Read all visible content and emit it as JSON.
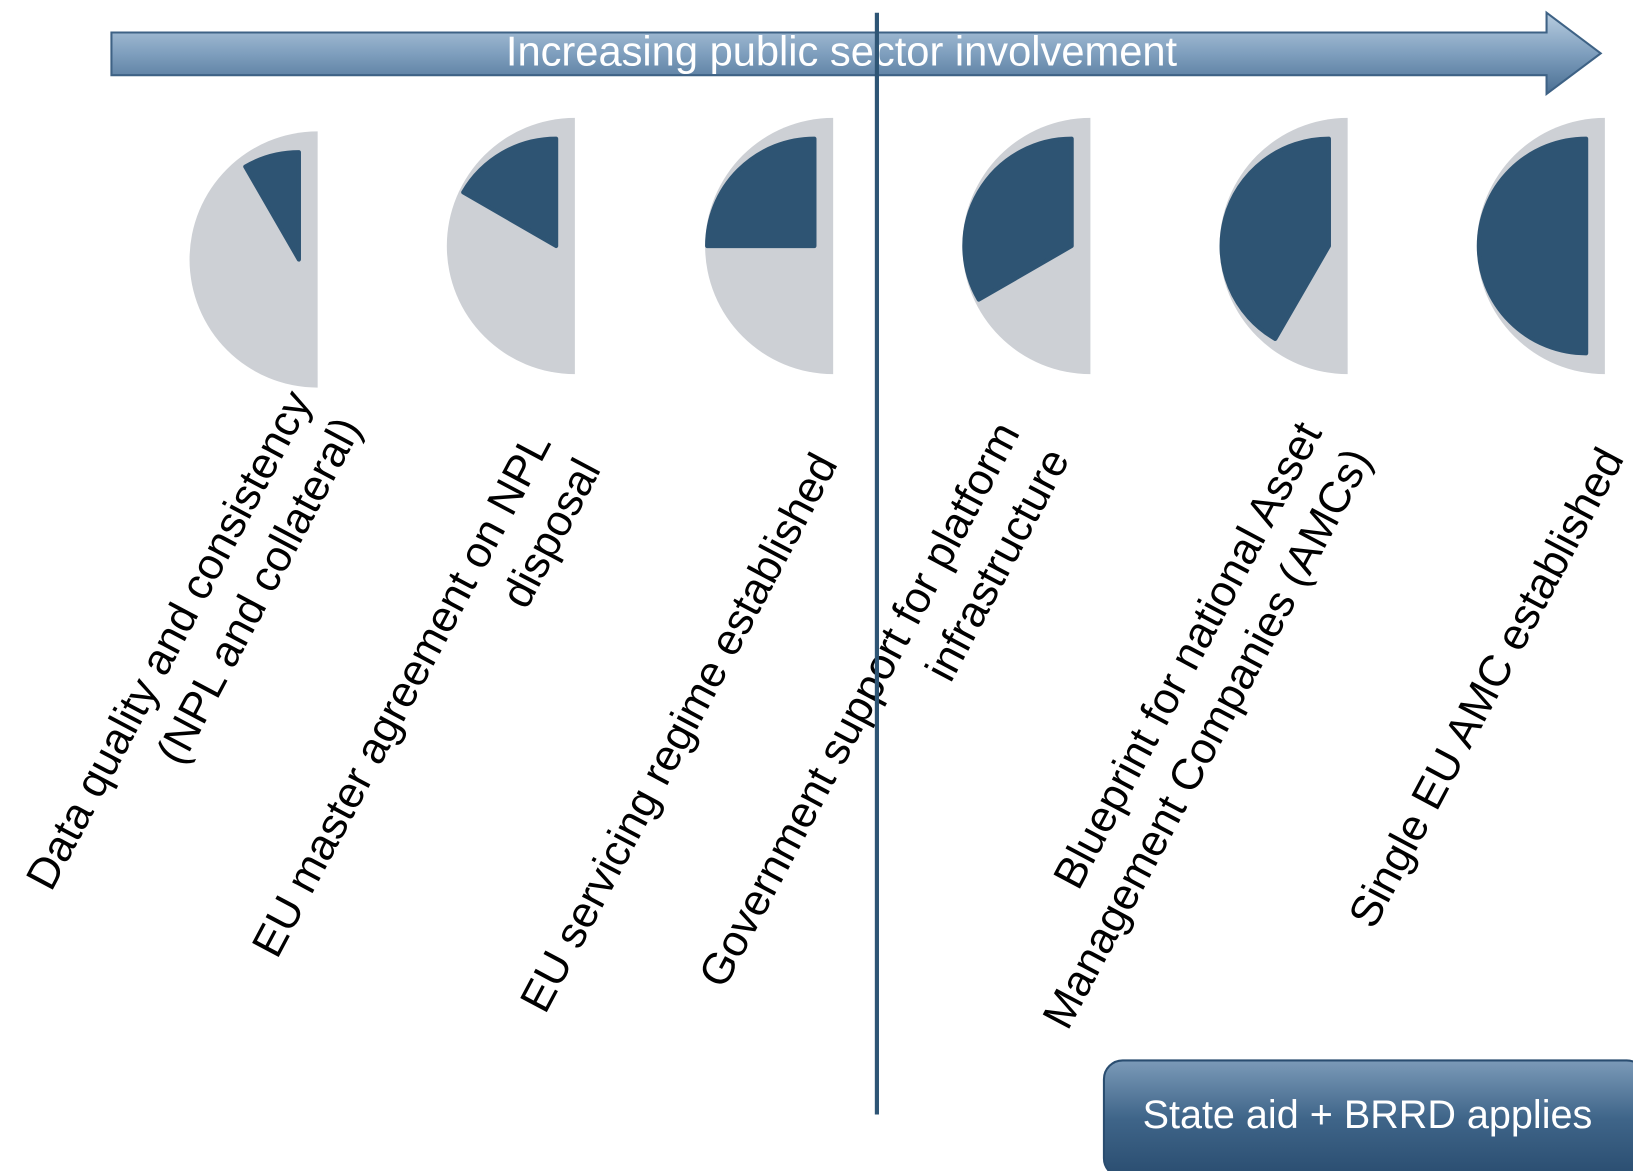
{
  "header": {
    "title": "Increasing public sector involvement"
  },
  "items": [
    {
      "lines": [
        "Data quality and consistency",
        "(NPL and collateral)"
      ]
    },
    {
      "lines": [
        "EU master agreement on NPL",
        "disposal"
      ]
    },
    {
      "lines": [
        "EU servicing regime established"
      ]
    },
    {
      "lines": [
        "Government support for platform",
        "infrastructure"
      ]
    },
    {
      "lines": [
        "Blueprint for national Asset",
        "Management Companies (AMCs)"
      ]
    },
    {
      "lines": [
        "Single EU AMC established"
      ]
    }
  ],
  "note_box": {
    "text": "State aid + BRRD applies"
  }
}
